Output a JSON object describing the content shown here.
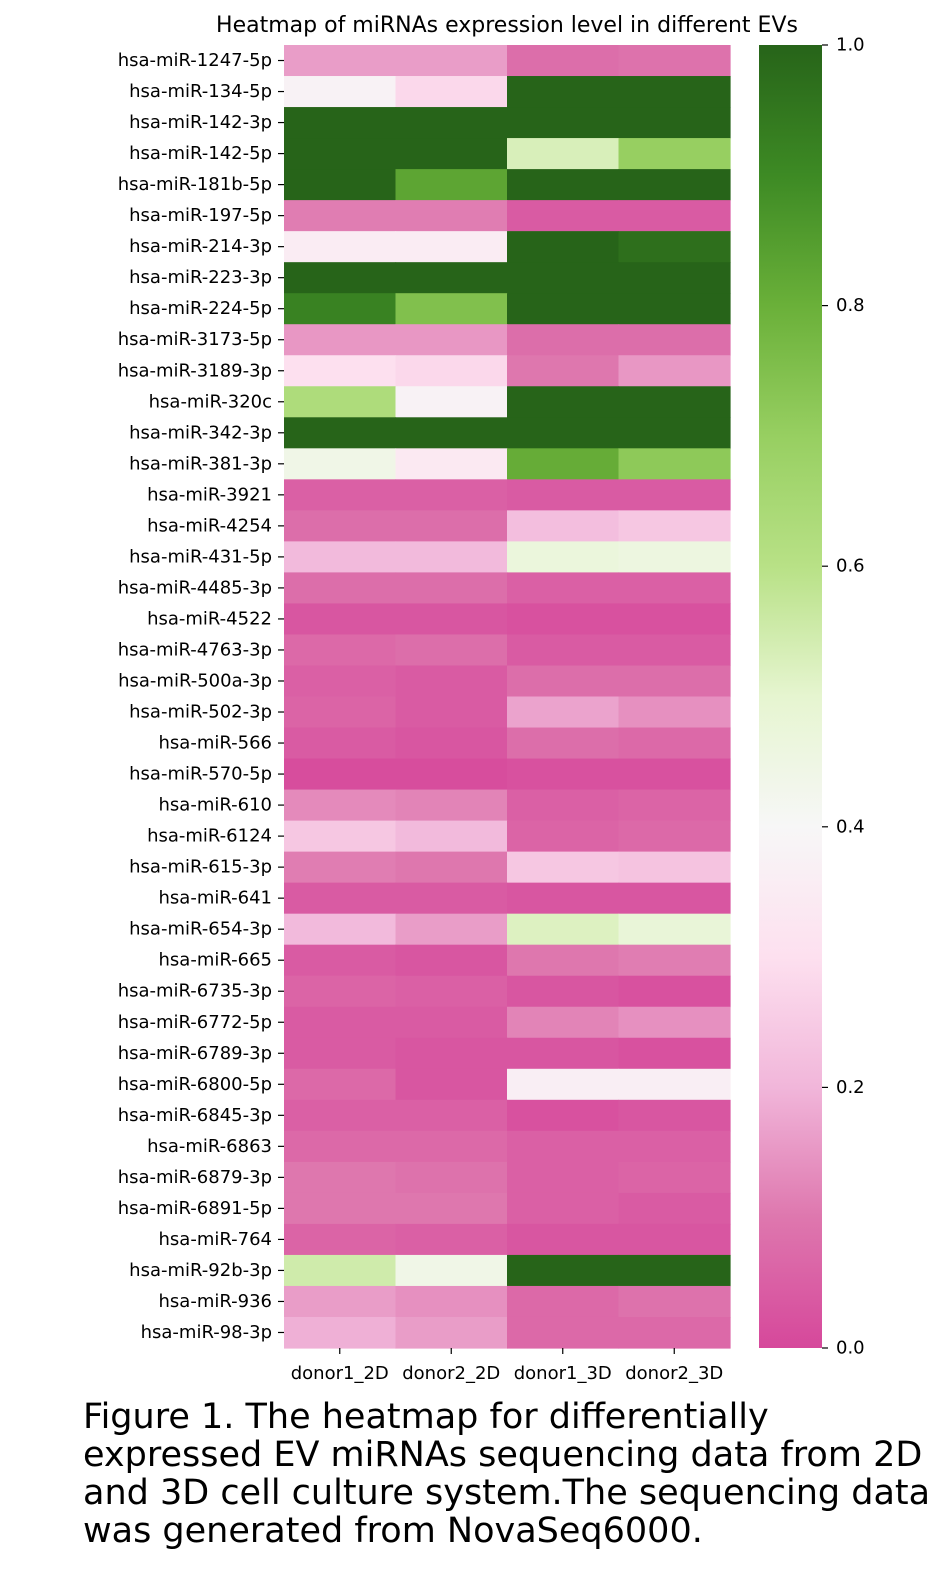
{
  "chart_data": {
    "type": "heatmap",
    "title": "Heatmap of miRNAs expression level in different EVs",
    "columns": [
      "donor1_2D",
      "donor2_2D",
      "donor1_3D",
      "donor2_3D"
    ],
    "rows": [
      "hsa-miR-1247-5p",
      "hsa-miR-134-5p",
      "hsa-miR-142-3p",
      "hsa-miR-142-5p",
      "hsa-miR-181b-5p",
      "hsa-miR-197-5p",
      "hsa-miR-214-3p",
      "hsa-miR-223-3p",
      "hsa-miR-224-5p",
      "hsa-miR-3173-5p",
      "hsa-miR-3189-3p",
      "hsa-miR-320c",
      "hsa-miR-342-3p",
      "hsa-miR-381-3p",
      "hsa-miR-3921",
      "hsa-miR-4254",
      "hsa-miR-431-5p",
      "hsa-miR-4485-3p",
      "hsa-miR-4522",
      "hsa-miR-4763-3p",
      "hsa-miR-500a-3p",
      "hsa-miR-502-3p",
      "hsa-miR-566",
      "hsa-miR-570-5p",
      "hsa-miR-610",
      "hsa-miR-6124",
      "hsa-miR-615-3p",
      "hsa-miR-641",
      "hsa-miR-654-3p",
      "hsa-miR-665",
      "hsa-miR-6735-3p",
      "hsa-miR-6772-5p",
      "hsa-miR-6789-3p",
      "hsa-miR-6800-5p",
      "hsa-miR-6845-3p",
      "hsa-miR-6863",
      "hsa-miR-6879-3p",
      "hsa-miR-6891-5p",
      "hsa-miR-764",
      "hsa-miR-92b-3p",
      "hsa-miR-936",
      "hsa-miR-98-3p"
    ],
    "values": [
      [
        0.16,
        0.16,
        0.08,
        0.09
      ],
      [
        0.38,
        0.28,
        1.0,
        1.0
      ],
      [
        1.0,
        1.0,
        1.0,
        1.0
      ],
      [
        1.0,
        1.0,
        0.53,
        0.7
      ],
      [
        1.0,
        0.83,
        1.0,
        1.0
      ],
      [
        0.11,
        0.11,
        0.04,
        0.04
      ],
      [
        0.35,
        0.35,
        1.0,
        0.97
      ],
      [
        1.0,
        1.0,
        1.0,
        1.0
      ],
      [
        0.92,
        0.75,
        1.0,
        1.0
      ],
      [
        0.15,
        0.15,
        0.08,
        0.08
      ],
      [
        0.3,
        0.28,
        0.1,
        0.15
      ],
      [
        0.63,
        0.38,
        1.0,
        1.0
      ],
      [
        1.0,
        1.0,
        1.0,
        1.0
      ],
      [
        0.44,
        0.34,
        0.81,
        0.72
      ],
      [
        0.05,
        0.05,
        0.04,
        0.04
      ],
      [
        0.08,
        0.08,
        0.22,
        0.24
      ],
      [
        0.21,
        0.21,
        0.47,
        0.46
      ],
      [
        0.08,
        0.08,
        0.05,
        0.05
      ],
      [
        0.03,
        0.03,
        0.02,
        0.02
      ],
      [
        0.07,
        0.08,
        0.04,
        0.04
      ],
      [
        0.05,
        0.04,
        0.08,
        0.08
      ],
      [
        0.06,
        0.04,
        0.17,
        0.14
      ],
      [
        0.04,
        0.03,
        0.08,
        0.07
      ],
      [
        0.01,
        0.01,
        0.02,
        0.02
      ],
      [
        0.13,
        0.12,
        0.05,
        0.06
      ],
      [
        0.24,
        0.21,
        0.06,
        0.07
      ],
      [
        0.11,
        0.1,
        0.24,
        0.23
      ],
      [
        0.04,
        0.04,
        0.03,
        0.03
      ],
      [
        0.21,
        0.16,
        0.52,
        0.48
      ],
      [
        0.04,
        0.03,
        0.1,
        0.11
      ],
      [
        0.06,
        0.05,
        0.03,
        0.02
      ],
      [
        0.04,
        0.04,
        0.12,
        0.14
      ],
      [
        0.04,
        0.03,
        0.03,
        0.02
      ],
      [
        0.07,
        0.03,
        0.36,
        0.36
      ],
      [
        0.05,
        0.05,
        0.02,
        0.03
      ],
      [
        0.07,
        0.07,
        0.05,
        0.05
      ],
      [
        0.1,
        0.09,
        0.05,
        0.06
      ],
      [
        0.1,
        0.1,
        0.05,
        0.04
      ],
      [
        0.06,
        0.05,
        0.03,
        0.03
      ],
      [
        0.55,
        0.44,
        1.0,
        1.0
      ],
      [
        0.16,
        0.14,
        0.07,
        0.09
      ],
      [
        0.19,
        0.16,
        0.07,
        0.07
      ]
    ],
    "xtick_labels": [
      "donor1_2D",
      "donor2_2D",
      "donor1_3D",
      "donor2_3D"
    ],
    "colorbar": {
      "colormap": "PiYG",
      "range": [
        0.0,
        1.0
      ],
      "tick_labels": [
        "0.0",
        "0.2",
        "0.4",
        "0.6",
        "0.8",
        "1.0"
      ],
      "ticks": [
        0.0,
        0.2,
        0.4,
        0.6,
        0.8,
        1.0
      ]
    }
  },
  "caption": "Figure 1. The heatmap for differentially expressed EV miRNAs sequencing data from 2D and 3D cell culture system.The sequencing data was generated from NovaSeq6000."
}
